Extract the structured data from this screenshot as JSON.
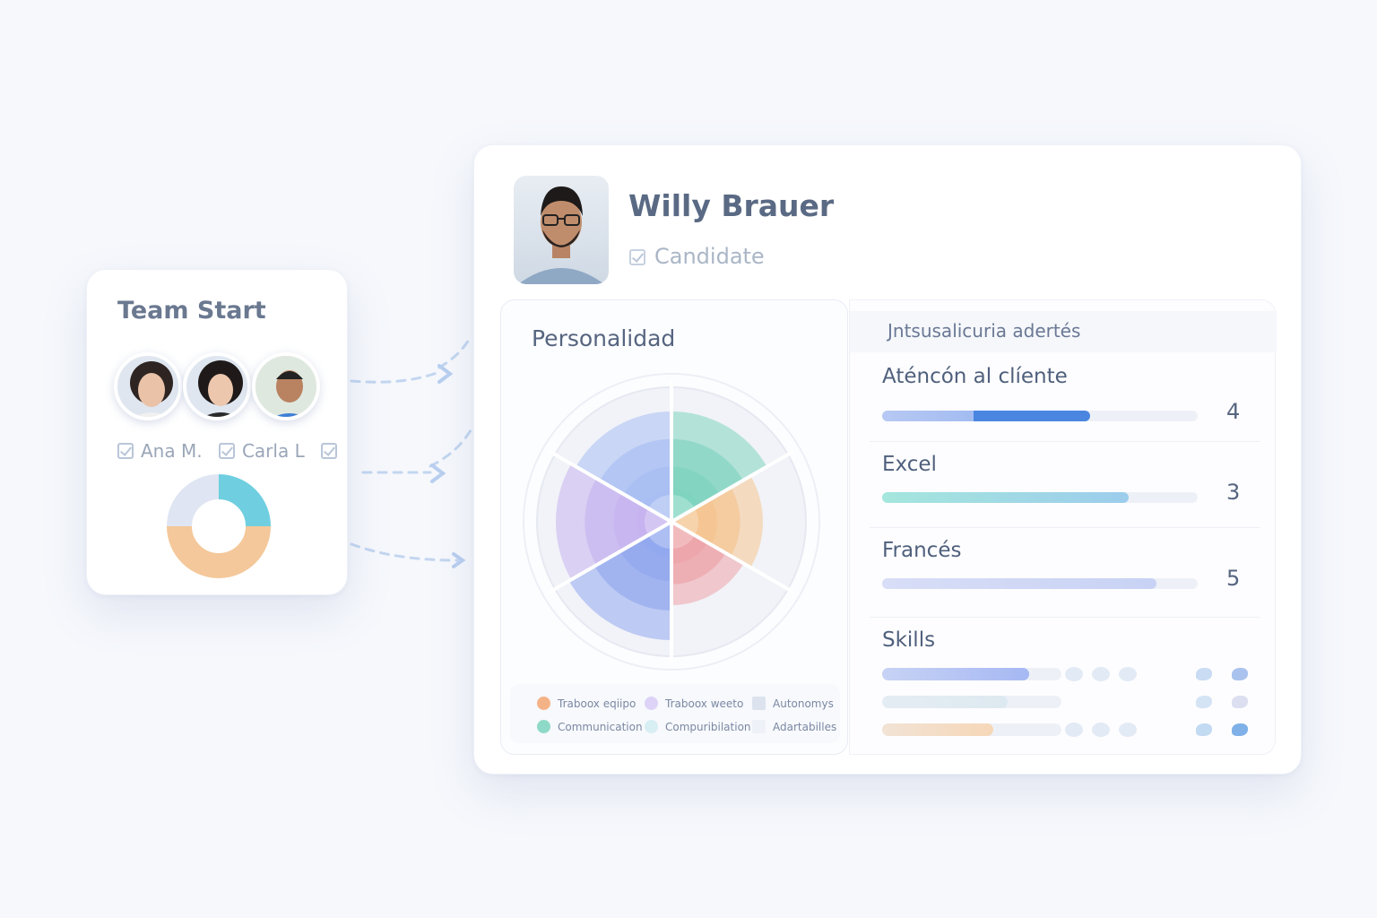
{
  "team_card": {
    "title": "Team Start",
    "members": [
      {
        "name": "Ana M.",
        "checked": true
      },
      {
        "name": "Carla L",
        "checked": true
      },
      {
        "name": "",
        "checked": true
      }
    ],
    "donut": {
      "segments": [
        {
          "color": "#6fcfe0",
          "value": 25
        },
        {
          "color": "#f4c89a",
          "value": 50
        },
        {
          "color": "#dfe5f2",
          "value": 25
        }
      ]
    }
  },
  "profile": {
    "name": "Willy Brauer",
    "role": "Candidate",
    "role_checked": true
  },
  "personality": {
    "title": "Personalidad",
    "sectors": [
      {
        "color": "#7fd3bf",
        "level": 0.82
      },
      {
        "color": "#f5c48f",
        "level": 0.68
      },
      {
        "color": "#eca3a8",
        "level": 0.62
      },
      {
        "color": "#92a8ee",
        "level": 0.88
      },
      {
        "color": "#c6b3ef",
        "level": 0.86
      },
      {
        "color": "#a8bdf2",
        "level": 0.82
      }
    ],
    "legend": [
      {
        "label": "Traboox eqiipo",
        "color": "#f4b387",
        "shape": "dot"
      },
      {
        "label": "Traboox weeto",
        "color": "#ddd3f7",
        "shape": "dot"
      },
      {
        "label": "Autonomys",
        "color": "#dde3ee",
        "shape": "square"
      },
      {
        "label": "Communication",
        "color": "#8fd9c8",
        "shape": "dot"
      },
      {
        "label": "Compuribilation",
        "color": "#d7eef3",
        "shape": "dot"
      },
      {
        "label": "Adartabilles",
        "color": "#eef1f7",
        "shape": "square"
      }
    ]
  },
  "skills_panel": {
    "header": "Jntsusalicuria adertés",
    "items": [
      {
        "label": "Aténcón al clíente",
        "value": "4",
        "progress": 0.66,
        "color": "#4a86e0"
      },
      {
        "label": "Excel",
        "value": "3",
        "progress": 0.78,
        "color": "#8fd0e6"
      },
      {
        "label": "Francés",
        "value": "5",
        "progress": 0.87,
        "color": "#c8d2f4"
      }
    ],
    "skills_title": "Skills",
    "skills_bars": [
      {
        "progress": 0.82,
        "color": "#a6b8f3"
      },
      {
        "progress": 0.7,
        "color": "#dde9f0"
      },
      {
        "progress": 0.62,
        "color": "#f6d7b8"
      }
    ]
  }
}
